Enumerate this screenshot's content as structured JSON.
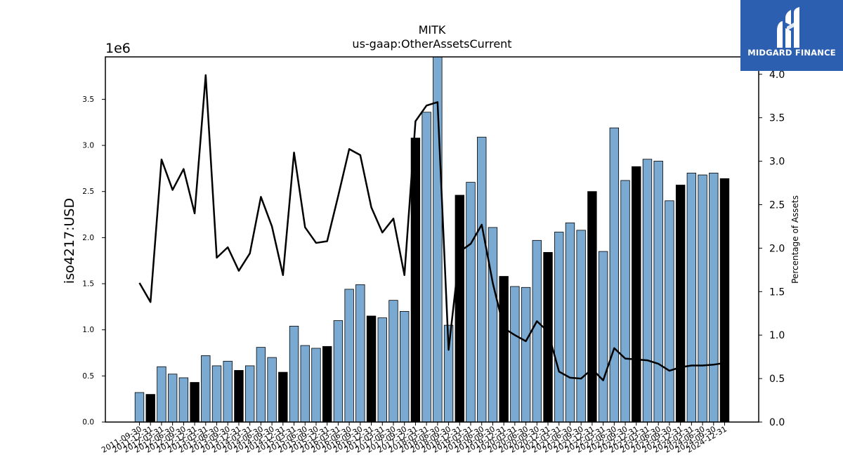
{
  "chart_data": {
    "type": "bar",
    "title": "MITK",
    "subtitle": "us-gaap:OtherAssetsCurrent",
    "ylabel": "iso4217:USD",
    "y_multiplier_label": "1e6",
    "y2label": "Percentage of Assets",
    "ylim": [
      0,
      3960000
    ],
    "y2lim": [
      0,
      4.2
    ],
    "yticks": [
      "0.0",
      "0.5",
      "1.0",
      "1.5",
      "2.0",
      "2.5",
      "3.0",
      "3.5"
    ],
    "y2ticks": [
      "0.0",
      "0.5",
      "1.0",
      "1.5",
      "2.0",
      "2.5",
      "3.0",
      "3.5",
      "4.0"
    ],
    "grid": false,
    "colors": {
      "bar_quarter": "#7aaad2",
      "bar_fiscal_year_end": "#000000",
      "line": "#000000"
    },
    "categories": [
      "2011-09-30",
      "2011-12-31",
      "2012-03-31",
      "2012-06-30",
      "2012-09-30",
      "2012-12-31",
      "2013-03-31",
      "2013-06-30",
      "2013-09-30",
      "2013-12-31",
      "2014-03-31",
      "2014-06-30",
      "2014-09-30",
      "2014-12-31",
      "2015-03-31",
      "2015-06-30",
      "2015-09-30",
      "2015-12-31",
      "2016-03-31",
      "2016-06-30",
      "2016-09-30",
      "2016-12-31",
      "2017-03-31",
      "2017-06-30",
      "2017-09-30",
      "2017-12-31",
      "2018-03-31",
      "2018-06-30",
      "2018-09-30",
      "2018-12-31",
      "2019-03-31",
      "2019-06-30",
      "2019-09-30",
      "2019-12-31",
      "2020-03-31",
      "2020-06-30",
      "2020-09-30",
      "2020-12-31",
      "2021-03-31",
      "2021-06-30",
      "2021-09-30",
      "2021-12-31",
      "2022-03-31",
      "2022-06-30",
      "2022-09-30",
      "2022-12-31",
      "2023-03-31",
      "2023-06-30",
      "2023-09-30",
      "2023-12-31",
      "2024-03-31",
      "2024-06-30",
      "2024-09-30",
      "2024-12-31"
    ],
    "series": [
      {
        "type": "bar",
        "values": [
          320000,
          300000,
          600000,
          520000,
          480000,
          430000,
          720000,
          610000,
          660000,
          560000,
          610000,
          810000,
          700000,
          540000,
          1040000,
          830000,
          800000,
          820000,
          1100000,
          1440000,
          1490000,
          1150000,
          1130000,
          1320000,
          1200000,
          3080000,
          3360000,
          4020000,
          1050000,
          2460000,
          2600000,
          3090000,
          2110000,
          1580000,
          1470000,
          1460000,
          1970000,
          1840000,
          2060000,
          2160000,
          2080000,
          2500000,
          1850000,
          3190000,
          2620000,
          2770000,
          2850000,
          2830000,
          2400000,
          2570000,
          2700000,
          2680000,
          2700000,
          2640000
        ]
      },
      {
        "type": "line",
        "axis": "right",
        "values": [
          1.6,
          1.38,
          3.02,
          2.67,
          2.91,
          2.4,
          3.99,
          1.89,
          2.01,
          1.74,
          1.94,
          2.59,
          2.25,
          1.69,
          3.1,
          2.24,
          2.06,
          2.08,
          2.6,
          3.14,
          3.07,
          2.47,
          2.18,
          2.34,
          1.69,
          3.46,
          3.64,
          3.68,
          0.83,
          1.96,
          2.05,
          2.27,
          1.6,
          1.08,
          1.0,
          0.93,
          1.16,
          1.04,
          0.58,
          0.51,
          0.5,
          0.61,
          0.48,
          0.85,
          0.73,
          0.72,
          0.71,
          0.67,
          0.59,
          0.63,
          0.65,
          0.65,
          0.66,
          0.68
        ]
      }
    ]
  }
}
